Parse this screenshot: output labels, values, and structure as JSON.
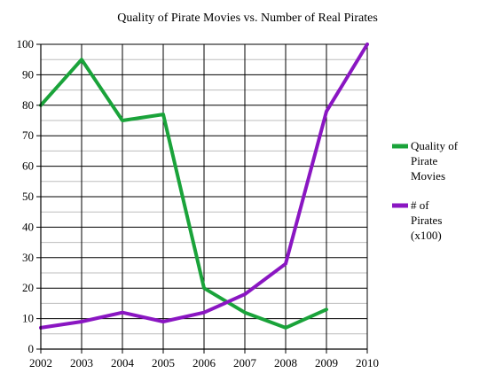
{
  "chart_data": {
    "type": "line",
    "title": "Quality of Pirate Movies vs. Number of Real Pirates",
    "xlabel": "",
    "ylabel": "",
    "x": [
      2002,
      2003,
      2004,
      2005,
      2006,
      2007,
      2008,
      2009,
      2010
    ],
    "xlim": [
      2002,
      2010
    ],
    "ylim": [
      0,
      100
    ],
    "y_ticks": [
      0,
      10,
      20,
      30,
      40,
      50,
      60,
      70,
      80,
      90,
      100
    ],
    "grid": true,
    "legend_position": "right",
    "series": [
      {
        "name": "Quality of Pirate Movies",
        "legend_lines": [
          "Quality of",
          "Pirate",
          "Movies"
        ],
        "color": "#1aa33a",
        "x": [
          2002,
          2003,
          2004,
          2005,
          2006,
          2007,
          2008,
          2009
        ],
        "values": [
          80,
          95,
          75,
          77,
          20,
          12,
          7,
          13
        ]
      },
      {
        "name": "# of Pirates (x100)",
        "legend_lines": [
          "# of",
          "Pirates",
          "(x100)"
        ],
        "color": "#8a16c2",
        "x": [
          2002,
          2003,
          2004,
          2005,
          2006,
          2007,
          2008,
          2009,
          2010
        ],
        "values": [
          7,
          9,
          12,
          9,
          12,
          18,
          28,
          78,
          100
        ]
      }
    ]
  }
}
